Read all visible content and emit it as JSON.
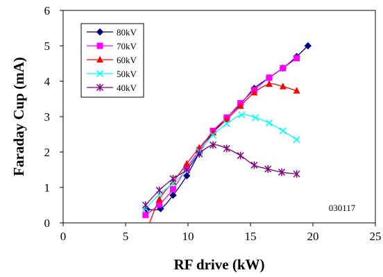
{
  "chart_data": {
    "type": "line",
    "title": "",
    "xlabel": "RF drive (kW)",
    "ylabel": "Faraday Cup (mA)",
    "xlim": [
      0,
      25
    ],
    "ylim": [
      0,
      6
    ],
    "xticks": [
      0,
      5,
      10,
      15,
      20,
      25
    ],
    "yticks": [
      0,
      1,
      2,
      3,
      4,
      5,
      6
    ],
    "grid": false,
    "legend_position": "top-left",
    "annotation": "030117",
    "series": [
      {
        "name": "80kV",
        "color": "#000080",
        "marker": "diamond",
        "x": [
          6.7,
          7.8,
          8.8,
          9.9,
          10.9,
          12.0,
          13.1,
          14.2,
          15.3,
          16.5,
          17.6,
          18.7,
          19.6
        ],
        "y": [
          0.38,
          0.4,
          0.78,
          1.33,
          1.97,
          2.55,
          2.97,
          3.35,
          3.8,
          4.1,
          4.37,
          4.7,
          5.0
        ]
      },
      {
        "name": "70kV",
        "color": "#ff00ff",
        "marker": "square",
        "x": [
          6.6,
          7.7,
          8.8,
          9.9,
          10.9,
          12.0,
          13.1,
          14.2,
          15.3,
          16.5,
          17.6,
          18.7
        ],
        "y": [
          0.22,
          0.52,
          0.95,
          1.55,
          2.05,
          2.6,
          2.97,
          3.38,
          3.75,
          4.1,
          4.37,
          4.65
        ]
      },
      {
        "name": "60kV",
        "color": "#ff0000",
        "marker": "triangle",
        "x": [
          6.6,
          7.7,
          8.8,
          9.9,
          10.9,
          12.0,
          13.1,
          14.2,
          15.3,
          16.5,
          17.6,
          18.7
        ],
        "y": [
          -0.3,
          0.66,
          1.15,
          1.67,
          2.12,
          2.55,
          2.92,
          3.3,
          3.68,
          3.92,
          3.85,
          3.73
        ]
      },
      {
        "name": "50kV",
        "color": "#00ffff",
        "marker": "x",
        "x": [
          6.6,
          7.7,
          8.8,
          9.9,
          10.9,
          12.0,
          13.1,
          14.3,
          15.4,
          16.5,
          17.6,
          18.7
        ],
        "y": [
          0.4,
          0.8,
          1.12,
          1.5,
          2.02,
          2.48,
          2.8,
          3.05,
          2.97,
          2.82,
          2.6,
          2.35
        ]
      },
      {
        "name": "40kV",
        "color": "#800080",
        "marker": "asterisk",
        "x": [
          6.6,
          7.7,
          8.8,
          9.9,
          10.9,
          12.0,
          13.1,
          14.2,
          15.3,
          16.4,
          17.5,
          18.7
        ],
        "y": [
          0.5,
          0.92,
          1.25,
          1.5,
          1.95,
          2.2,
          2.1,
          1.9,
          1.63,
          1.52,
          1.43,
          1.38
        ]
      }
    ]
  }
}
